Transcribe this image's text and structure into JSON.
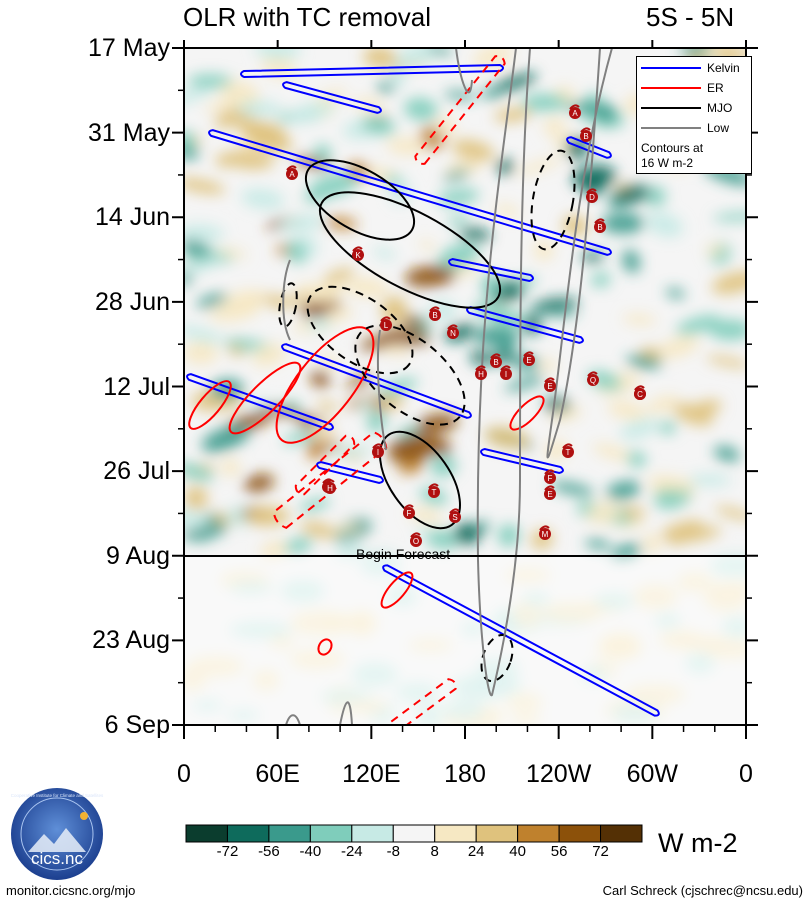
{
  "title": "OLR with TC removal",
  "region": "5S - 5N",
  "y_labels": [
    "17 May",
    "31 May",
    "14 Jun",
    "28 Jun",
    "12 Jul",
    "26 Jul",
    "9 Aug",
    "23 Aug",
    "6 Sep"
  ],
  "x_labels": [
    "0",
    "60E",
    "120E",
    "180",
    "120W",
    "60W",
    "0"
  ],
  "forecast_label": "Begin Forecast",
  "legend": {
    "items": [
      {
        "label": "Kelvin",
        "color": "#0000ff",
        "style": "solid"
      },
      {
        "label": "ER",
        "color": "#ff0000",
        "style": "solid"
      },
      {
        "label": "MJO",
        "color": "#000000",
        "style": "solid"
      },
      {
        "label": "Low",
        "color": "#808080",
        "style": "solid"
      }
    ],
    "note_line1": "Contours at",
    "note_line2": "16 W m-2"
  },
  "colorbar": {
    "labels": [
      "-72",
      "-56",
      "-40",
      "-24",
      "-8",
      "8",
      "24",
      "40",
      "56",
      "72"
    ],
    "colors": [
      "#0b3d2e",
      "#0e6b5c",
      "#3a9a8c",
      "#7fcdbb",
      "#c7eae5",
      "#f5f5f5",
      "#f6e8c3",
      "#dfc27d",
      "#bf812d",
      "#8c510a",
      "#543005"
    ],
    "units": "W m-2"
  },
  "storm_markers": [
    "A",
    "B",
    "A",
    "K",
    "B",
    "L",
    "N",
    "B",
    "H",
    "I",
    "E",
    "E",
    "Q",
    "C",
    "B",
    "D",
    "I",
    "T",
    "F",
    "E",
    "G",
    "T",
    "S",
    "F",
    "O",
    "M",
    "H",
    "C"
  ],
  "footer_left": "monitor.cicsnc.org/mjo",
  "footer_right": "Carl Schreck (cjschrec@ncsu.edu)",
  "logo_text": "cics.nc",
  "logo_ring_text": "Cooperative Institute for Climate and Satellites",
  "chart_data": {
    "type": "heatmap",
    "title": "OLR with TC removal",
    "subtitle": "5S - 5N",
    "x_axis": {
      "label": "",
      "range": [
        0,
        360
      ],
      "ticks": [
        "0",
        "60E",
        "120E",
        "180",
        "120W",
        "60W",
        "0"
      ]
    },
    "y_axis": {
      "label": "",
      "range": [
        "17 May",
        "6 Sep"
      ],
      "ticks": [
        "17 May",
        "31 May",
        "14 Jun",
        "28 Jun",
        "12 Jul",
        "26 Jul",
        "9 Aug",
        "23 Aug",
        "6 Sep"
      ],
      "inverted": true
    },
    "color_scale": {
      "levels": [
        -72,
        -56,
        -40,
        -24,
        -8,
        8,
        24,
        40,
        56,
        72
      ],
      "units": "W m-2"
    },
    "contour_interval": "16 W m-2",
    "overlays": [
      "Kelvin",
      "ER",
      "MJO",
      "Low"
    ],
    "forecast_start": "9 Aug"
  }
}
